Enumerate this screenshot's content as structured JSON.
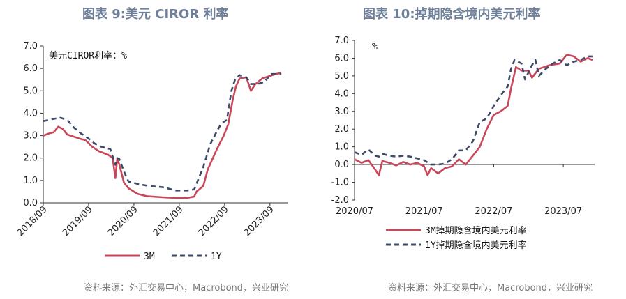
{
  "colors": {
    "series_3m": "#c8475a",
    "series_1y": "#3d4a68",
    "title": "#6e7f99",
    "axis": "#333333",
    "source": "#777777"
  },
  "chart_data": [
    {
      "type": "line",
      "title": "图表 9:美元 CIROR 利率",
      "unit_label": "美元CIROR利率：%",
      "ylim": [
        0,
        7
      ],
      "y_ticks": [
        "0.0",
        "1.0",
        "2.0",
        "3.0",
        "4.0",
        "5.0",
        "6.0",
        "7.0"
      ],
      "x_tick_labels": [
        "2018/09",
        "2019/09",
        "2020/09",
        "2021/09",
        "2022/09",
        "2023/09"
      ],
      "grid": false,
      "legend_position": "bottom",
      "series": [
        {
          "name": "3M",
          "style": "solid",
          "points": [
            [
              2018.67,
              3.0
            ],
            [
              2018.8,
              3.1
            ],
            [
              2018.9,
              3.15
            ],
            [
              2019.0,
              3.4
            ],
            [
              2019.1,
              3.3
            ],
            [
              2019.2,
              3.05
            ],
            [
              2019.35,
              2.95
            ],
            [
              2019.5,
              2.85
            ],
            [
              2019.6,
              2.8
            ],
            [
              2019.75,
              2.5
            ],
            [
              2019.9,
              2.3
            ],
            [
              2020.1,
              2.15
            ],
            [
              2020.2,
              2.0
            ],
            [
              2020.26,
              1.1
            ],
            [
              2020.3,
              1.95
            ],
            [
              2020.35,
              1.7
            ],
            [
              2020.45,
              0.9
            ],
            [
              2020.55,
              0.65
            ],
            [
              2020.75,
              0.4
            ],
            [
              2020.95,
              0.3
            ],
            [
              2021.3,
              0.25
            ],
            [
              2021.6,
              0.22
            ],
            [
              2021.85,
              0.22
            ],
            [
              2022.0,
              0.28
            ],
            [
              2022.05,
              0.5
            ],
            [
              2022.2,
              0.75
            ],
            [
              2022.3,
              1.5
            ],
            [
              2022.5,
              2.4
            ],
            [
              2022.65,
              3.0
            ],
            [
              2022.75,
              3.5
            ],
            [
              2022.85,
              4.6
            ],
            [
              2022.92,
              5.2
            ],
            [
              2023.0,
              5.55
            ],
            [
              2023.15,
              5.6
            ],
            [
              2023.25,
              5.0
            ],
            [
              2023.35,
              5.3
            ],
            [
              2023.5,
              5.55
            ],
            [
              2023.65,
              5.65
            ],
            [
              2023.8,
              5.75
            ],
            [
              2023.92,
              5.8
            ]
          ]
        },
        {
          "name": "1Y",
          "style": "dashed",
          "points": [
            [
              2018.67,
              3.65
            ],
            [
              2018.8,
              3.7
            ],
            [
              2018.9,
              3.75
            ],
            [
              2019.05,
              3.8
            ],
            [
              2019.2,
              3.7
            ],
            [
              2019.35,
              3.35
            ],
            [
              2019.5,
              3.1
            ],
            [
              2019.65,
              2.9
            ],
            [
              2019.8,
              2.65
            ],
            [
              2019.95,
              2.5
            ],
            [
              2020.15,
              2.4
            ],
            [
              2020.26,
              1.7
            ],
            [
              2020.3,
              2.0
            ],
            [
              2020.35,
              1.95
            ],
            [
              2020.45,
              1.4
            ],
            [
              2020.55,
              0.95
            ],
            [
              2020.75,
              0.85
            ],
            [
              2021.0,
              0.75
            ],
            [
              2021.3,
              0.7
            ],
            [
              2021.6,
              0.55
            ],
            [
              2021.85,
              0.55
            ],
            [
              2022.0,
              0.6
            ],
            [
              2022.08,
              1.0
            ],
            [
              2022.2,
              1.6
            ],
            [
              2022.35,
              2.6
            ],
            [
              2022.5,
              3.2
            ],
            [
              2022.6,
              3.55
            ],
            [
              2022.72,
              3.7
            ],
            [
              2022.82,
              5.0
            ],
            [
              2022.9,
              5.5
            ],
            [
              2023.0,
              5.7
            ],
            [
              2023.15,
              5.6
            ],
            [
              2023.25,
              5.3
            ],
            [
              2023.4,
              5.3
            ],
            [
              2023.55,
              5.4
            ],
            [
              2023.7,
              5.75
            ],
            [
              2023.85,
              5.75
            ],
            [
              2023.92,
              5.75
            ]
          ]
        }
      ]
    },
    {
      "type": "line",
      "title": "图表 10:掉期隐含境内美元利率",
      "unit_label": "%",
      "ylim": [
        -2,
        7
      ],
      "y_ticks": [
        "-2.0",
        "-1.0",
        "0.0",
        "1.0",
        "2.0",
        "3.0",
        "4.0",
        "5.0",
        "6.0",
        "7.0"
      ],
      "x_tick_labels": [
        "2020/07",
        "2021/07",
        "2022/07",
        "2023/07"
      ],
      "grid": false,
      "legend_position": "bottom",
      "series": [
        {
          "name": "3M掉期隐含境内美元利率",
          "style": "solid",
          "points": [
            [
              2020.5,
              0.3
            ],
            [
              2020.6,
              0.1
            ],
            [
              2020.7,
              0.25
            ],
            [
              2020.8,
              -0.3
            ],
            [
              2020.85,
              -0.6
            ],
            [
              2020.9,
              0.2
            ],
            [
              2021.0,
              0.1
            ],
            [
              2021.1,
              -0.05
            ],
            [
              2021.2,
              0.15
            ],
            [
              2021.3,
              0.0
            ],
            [
              2021.4,
              0.1
            ],
            [
              2021.5,
              -0.1
            ],
            [
              2021.55,
              -0.6
            ],
            [
              2021.6,
              -0.2
            ],
            [
              2021.7,
              -0.5
            ],
            [
              2021.8,
              -0.2
            ],
            [
              2021.9,
              -0.1
            ],
            [
              2022.0,
              0.3
            ],
            [
              2022.1,
              0.0
            ],
            [
              2022.2,
              0.5
            ],
            [
              2022.3,
              1.0
            ],
            [
              2022.4,
              2.0
            ],
            [
              2022.5,
              2.8
            ],
            [
              2022.6,
              3.0
            ],
            [
              2022.7,
              3.3
            ],
            [
              2022.75,
              4.3
            ],
            [
              2022.82,
              5.5
            ],
            [
              2022.9,
              5.3
            ],
            [
              2023.0,
              5.3
            ],
            [
              2023.05,
              4.9
            ],
            [
              2023.15,
              5.4
            ],
            [
              2023.3,
              5.6
            ],
            [
              2023.45,
              5.7
            ],
            [
              2023.55,
              6.2
            ],
            [
              2023.65,
              6.1
            ],
            [
              2023.75,
              5.8
            ],
            [
              2023.85,
              6.0
            ],
            [
              2023.92,
              5.9
            ]
          ]
        },
        {
          "name": "1Y掉期隐含境内美元利率",
          "style": "dashed",
          "points": [
            [
              2020.5,
              0.7
            ],
            [
              2020.6,
              0.55
            ],
            [
              2020.7,
              0.85
            ],
            [
              2020.8,
              0.5
            ],
            [
              2020.85,
              0.45
            ],
            [
              2020.9,
              0.6
            ],
            [
              2021.0,
              0.5
            ],
            [
              2021.1,
              0.45
            ],
            [
              2021.2,
              0.5
            ],
            [
              2021.3,
              0.45
            ],
            [
              2021.4,
              0.35
            ],
            [
              2021.5,
              0.25
            ],
            [
              2021.6,
              0.0
            ],
            [
              2021.7,
              0.0
            ],
            [
              2021.8,
              0.05
            ],
            [
              2021.9,
              0.3
            ],
            [
              2022.0,
              0.8
            ],
            [
              2022.1,
              0.8
            ],
            [
              2022.2,
              1.3
            ],
            [
              2022.3,
              2.4
            ],
            [
              2022.4,
              2.6
            ],
            [
              2022.5,
              3.3
            ],
            [
              2022.6,
              3.9
            ],
            [
              2022.7,
              4.4
            ],
            [
              2022.75,
              5.4
            ],
            [
              2022.8,
              5.9
            ],
            [
              2022.9,
              5.7
            ],
            [
              2022.95,
              4.8
            ],
            [
              2023.05,
              5.6
            ],
            [
              2023.1,
              5.9
            ],
            [
              2023.15,
              5.0
            ],
            [
              2023.25,
              5.4
            ],
            [
              2023.35,
              5.7
            ],
            [
              2023.45,
              5.9
            ],
            [
              2023.55,
              5.6
            ],
            [
              2023.65,
              5.8
            ],
            [
              2023.75,
              5.9
            ],
            [
              2023.85,
              6.1
            ],
            [
              2023.92,
              6.1
            ]
          ]
        }
      ]
    }
  ],
  "sources": {
    "left": "资料来源：外汇交易中心，Macrobond，兴业研究",
    "right": "资料来源：外汇交易中心，Macrobond，兴业研究"
  }
}
